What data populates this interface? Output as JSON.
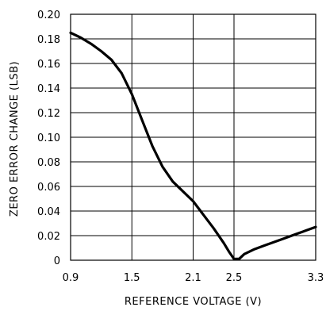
{
  "chart_data": {
    "type": "line",
    "title": "",
    "xlabel": "REFERENCE VOLTAGE (V)",
    "ylabel": "ZERO ERROR CHANGE (LSB)",
    "xlim": [
      0.9,
      3.3
    ],
    "ylim": [
      0,
      0.2
    ],
    "grid": true,
    "x_ticks": [
      0.9,
      1.5,
      2.1,
      2.5,
      3.3
    ],
    "x_tick_labels": [
      "0.9",
      "1.5",
      "2.1",
      "2.5",
      "3.3"
    ],
    "y_ticks": [
      0,
      0.02,
      0.04,
      0.06,
      0.08,
      0.1,
      0.12,
      0.14,
      0.16,
      0.18,
      0.2
    ],
    "y_tick_labels": [
      "0",
      "0.02",
      "0.04",
      "0.06",
      "0.08",
      "0.10",
      "0.12",
      "0.14",
      "0.16",
      "0.18",
      "0.20"
    ],
    "series": [
      {
        "x": [
          0.9,
          1.0,
          1.1,
          1.2,
          1.3,
          1.4,
          1.5,
          1.6,
          1.7,
          1.8,
          1.9,
          2.0,
          2.1,
          2.2,
          2.3,
          2.4,
          2.45,
          2.5,
          2.55,
          2.6,
          2.7,
          2.8,
          2.9,
          3.0,
          3.1,
          3.2,
          3.3
        ],
        "y": [
          0.185,
          0.181,
          0.176,
          0.17,
          0.163,
          0.152,
          0.135,
          0.114,
          0.093,
          0.076,
          0.064,
          0.056,
          0.048,
          0.037,
          0.026,
          0.014,
          0.007,
          0.001,
          0.001,
          0.005,
          0.009,
          0.012,
          0.015,
          0.018,
          0.021,
          0.024,
          0.027
        ]
      }
    ]
  },
  "colors": {
    "line": "#000000",
    "grid": "#000000",
    "background": "#ffffff"
  }
}
